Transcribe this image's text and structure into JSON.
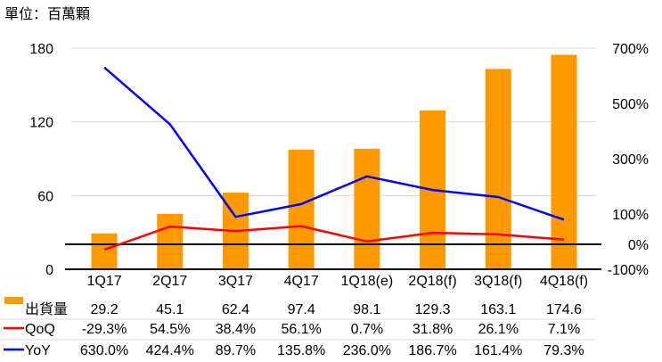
{
  "header": {
    "unit_label": "單位：百萬顆"
  },
  "chart_data": {
    "type": "bar",
    "combo": "bar + line (dual axis) with data table",
    "title": "",
    "unit_label": "單位：百萬顆",
    "xlabel": "",
    "ylabel": "",
    "categories": [
      "1Q17",
      "2Q17",
      "3Q17",
      "4Q17",
      "1Q18(e)",
      "2Q18(f)",
      "3Q18(f)",
      "4Q18(f)"
    ],
    "series": [
      {
        "name": "出貨量",
        "type": "bar",
        "axis": "left",
        "color": "#FF9900",
        "values": [
          29.2,
          45.1,
          62.4,
          97.4,
          98.1,
          129.3,
          163.1,
          174.6
        ],
        "labels": [
          "29.2",
          "45.1",
          "62.4",
          "97.4",
          "98.1",
          "129.3",
          "163.1",
          "174.6"
        ]
      },
      {
        "name": "QoQ",
        "type": "line",
        "axis": "right",
        "color": "#FF0000",
        "values": [
          -29.3,
          54.5,
          38.4,
          56.1,
          0.7,
          31.8,
          26.1,
          7.1
        ],
        "labels": [
          "-29.3%",
          "54.5%",
          "38.4%",
          "56.1%",
          "0.7%",
          "31.8%",
          "26.1%",
          "7.1%"
        ]
      },
      {
        "name": "YoY",
        "type": "line",
        "axis": "right",
        "color": "#0000FF",
        "values": [
          630.0,
          424.4,
          89.7,
          135.8,
          236.0,
          186.7,
          161.4,
          79.3
        ],
        "labels": [
          "630.0%",
          "424.4%",
          "89.7%",
          "135.8%",
          "236.0%",
          "186.7%",
          "161.4%",
          "79.3%"
        ]
      }
    ],
    "y_left": {
      "range": [
        0,
        180
      ],
      "ticks": [
        0,
        60,
        120,
        180
      ],
      "tick_labels": [
        "0",
        "60",
        "120",
        "180"
      ]
    },
    "y_right": {
      "range": [
        -100,
        700
      ],
      "ticks": [
        -100,
        0,
        100,
        300,
        500,
        700
      ],
      "tick_labels": [
        "-100%",
        "0%",
        "100%",
        "300%",
        "500%",
        "700%"
      ],
      "reference_line": 0
    },
    "grid": true,
    "grid_color": "#D9D9D9",
    "axis_color": "#000000",
    "legend": "bottom-left (data table)"
  }
}
